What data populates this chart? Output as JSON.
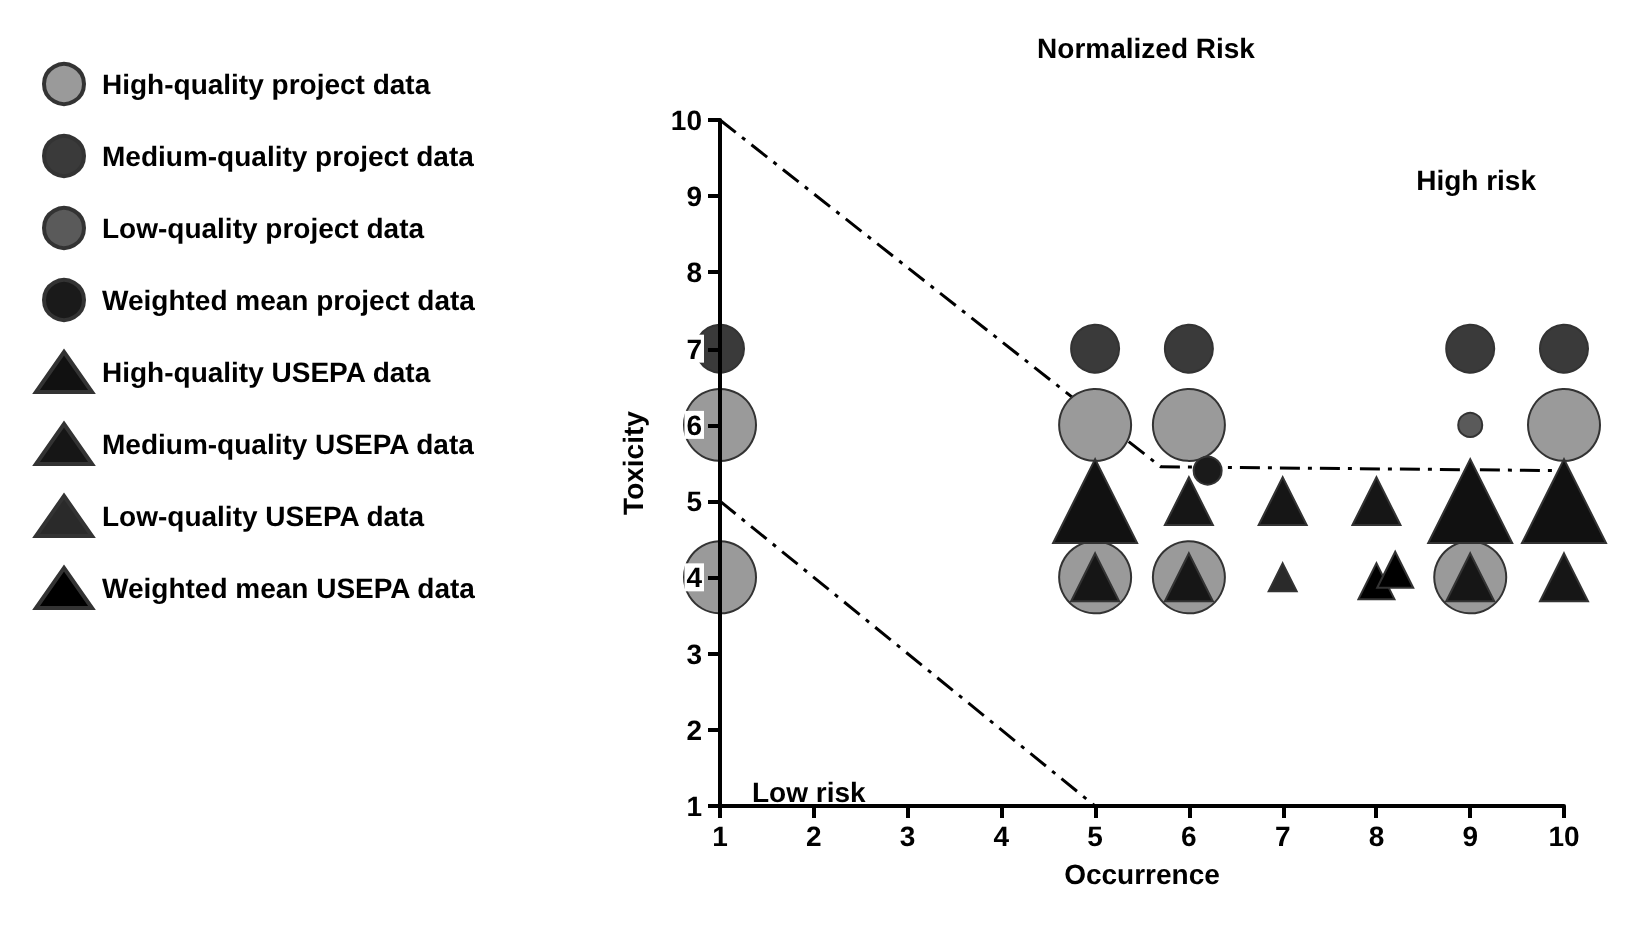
{
  "chart_data": {
    "type": "scatter",
    "title": "Normalized Risk",
    "xlabel": "Occurrence",
    "ylabel": "Toxicity",
    "xlim": [
      1,
      10
    ],
    "ylim": [
      1,
      10
    ],
    "xticks": [
      1,
      2,
      3,
      4,
      5,
      6,
      7,
      8,
      9,
      10
    ],
    "yticks": [
      1,
      2,
      3,
      4,
      5,
      6,
      7,
      8,
      9,
      10
    ],
    "grid": false,
    "legend": "left",
    "annotations": [
      "High risk",
      "Low risk"
    ],
    "series": [
      {
        "name": "High-quality project data",
        "color": "#9a9a9a",
        "marker": "circle",
        "x": [
          1,
          1,
          5,
          6,
          5,
          6,
          9,
          10
        ],
        "values": [
          6,
          4,
          6,
          6,
          4,
          4,
          4,
          6
        ]
      },
      {
        "name": "Medium-quality project data",
        "color": "#3a3a3a",
        "marker": "circle",
        "x": [
          1,
          5,
          6,
          9,
          10
        ],
        "values": [
          7,
          7,
          7,
          7,
          7
        ]
      },
      {
        "name": "Low-quality project data",
        "color": "#5a5a5a",
        "marker": "circle",
        "x": [
          9
        ],
        "values": [
          6
        ]
      },
      {
        "name": "Weighted mean project data",
        "color": "#1a1a1a",
        "marker": "circle",
        "x": [
          6.2
        ],
        "values": [
          5.4
        ]
      },
      {
        "name": "High-quality USEPA data",
        "color": "#111111",
        "marker": "triangle",
        "x": [
          5,
          9,
          10
        ],
        "values": [
          5,
          5,
          5
        ]
      },
      {
        "name": "Medium-quality USEPA data",
        "color": "#161616",
        "marker": "triangle",
        "x": [
          6,
          7,
          8,
          5,
          6,
          9,
          10
        ],
        "values": [
          5,
          5,
          5,
          4,
          4,
          4,
          4
        ]
      },
      {
        "name": "Low-quality USEPA data",
        "color": "#2a2a2a",
        "marker": "triangle",
        "x": [
          7
        ],
        "values": [
          4
        ]
      },
      {
        "name": "Weighted mean USEPA data",
        "color": "#000000",
        "marker": "triangle",
        "x": [
          8,
          8.2
        ],
        "values": [
          3.95,
          4.1
        ]
      },
      {
        "type": "line",
        "color": "#000000",
        "line_style": "dashed",
        "marker": "none",
        "x": [
          1,
          5.7,
          10
        ],
        "values": [
          10,
          5.45,
          5.4
        ]
      },
      {
        "type": "line",
        "color": "#000000",
        "line_style": "dashed",
        "marker": "none",
        "x": [
          1,
          5
        ],
        "values": [
          5,
          1
        ]
      }
    ]
  }
}
